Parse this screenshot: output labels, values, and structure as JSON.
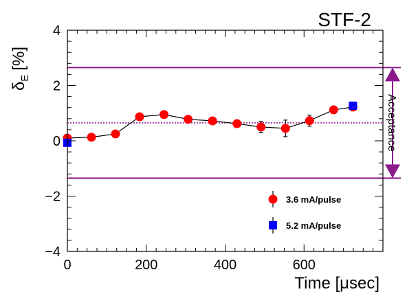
{
  "chart_data": {
    "type": "scatter",
    "title": "STF-2",
    "xlabel": "Time [μsec]",
    "ylabel_main": "δ",
    "ylabel_sub": "E",
    "ylabel_unit": "[%]",
    "xlim": [
      0,
      800
    ],
    "ylim": [
      -4,
      4
    ],
    "x_ticks": [
      0,
      200,
      400,
      600
    ],
    "y_ticks": [
      4,
      2,
      0,
      -2,
      -4
    ],
    "y_tick_labels": [
      "4",
      "2",
      "0",
      "−2",
      "−4"
    ],
    "grid": false,
    "legend_position": "bottom-right",
    "acceptance": {
      "label": "Acceptance",
      "upper": 2.65,
      "lower": -1.35,
      "center": 0.65,
      "color": "#8b1a8b"
    },
    "series": [
      {
        "name": "3.6 mA/pulse",
        "marker": "circle",
        "color": "#ff0000",
        "connected": true,
        "points": [
          {
            "x": 0,
            "y": 0.1,
            "err": 0.0
          },
          {
            "x": 61,
            "y": 0.13,
            "err": 0.0
          },
          {
            "x": 122,
            "y": 0.25,
            "err": 0.0
          },
          {
            "x": 183,
            "y": 0.87,
            "err": 0.0
          },
          {
            "x": 245,
            "y": 0.95,
            "err": 0.0
          },
          {
            "x": 306,
            "y": 0.78,
            "err": 0.0
          },
          {
            "x": 368,
            "y": 0.72,
            "err": 0.0
          },
          {
            "x": 430,
            "y": 0.62,
            "err": 0.0
          },
          {
            "x": 491,
            "y": 0.5,
            "err": 0.2
          },
          {
            "x": 553,
            "y": 0.45,
            "err": 0.3
          },
          {
            "x": 614,
            "y": 0.73,
            "err": 0.2
          },
          {
            "x": 675,
            "y": 1.12,
            "err": 0.12
          },
          {
            "x": 724,
            "y": 1.22,
            "err": 0.0
          }
        ]
      },
      {
        "name": "5.2 mA/pulse",
        "marker": "square",
        "color": "#0000ff",
        "connected": false,
        "points": [
          {
            "x": 0,
            "y": -0.07,
            "err": 0.0
          },
          {
            "x": 724,
            "y": 1.27,
            "err": 0.0
          }
        ]
      }
    ]
  }
}
